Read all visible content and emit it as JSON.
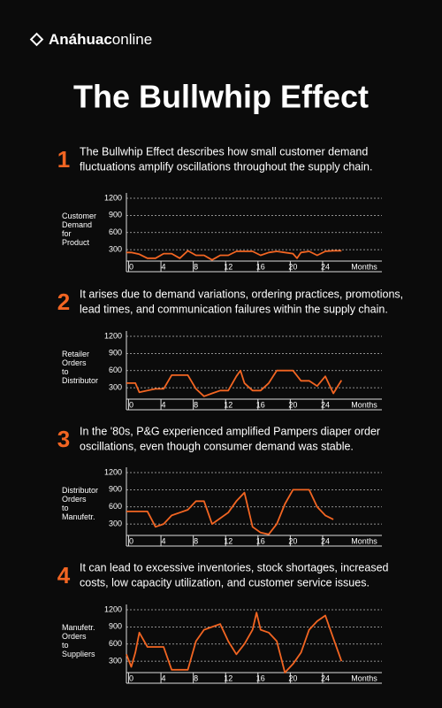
{
  "brand": {
    "bold": "Anáhuac",
    "light": "online"
  },
  "title": "The Bullwhip Effect",
  "sections": [
    {
      "number": "1",
      "lines": [
        "The Bullwhip Effect describes how small customer demand",
        "fluctuations amplify oscillations throughout the supply chain."
      ]
    },
    {
      "number": "2",
      "lines": [
        "It arises due to demand variations, ordering practices, promotions,",
        "lead times, and communication failures within the supply chain."
      ]
    },
    {
      "number": "3",
      "lines": [
        "In the '80s, P&G experienced amplified Pampers diaper order",
        "oscillations, even though consumer demand was stable."
      ]
    },
    {
      "number": "4",
      "lines": [
        "It can lead to excessive inventories, stock shortages, increased",
        "costs, low capacity utilization, and customer service issues."
      ]
    }
  ],
  "chart_data": [
    {
      "type": "line",
      "ylabel": [
        "Customer",
        "Demand",
        "for",
        "Product"
      ],
      "xlabel": "Months",
      "color": "#f26522",
      "x": [
        -0.6,
        0,
        1,
        2,
        3,
        4,
        5,
        6,
        7,
        8,
        9,
        10,
        11,
        12,
        13,
        14,
        15,
        16,
        17,
        18,
        19,
        20,
        20.5,
        21,
        22,
        23,
        24,
        25,
        26
      ],
      "values": [
        250,
        250,
        220,
        150,
        150,
        230,
        230,
        150,
        280,
        200,
        200,
        120,
        200,
        200,
        270,
        270,
        270,
        200,
        250,
        270,
        250,
        230,
        150,
        250,
        270,
        200,
        270,
        280,
        280
      ],
      "xlim": [
        -0.6,
        31
      ],
      "ylim": [
        100,
        1200
      ],
      "xticks": [
        0,
        4,
        8,
        12,
        16,
        20,
        24
      ],
      "yticks": [
        300,
        600,
        900,
        1200
      ],
      "grid": true
    },
    {
      "type": "line",
      "ylabel": [
        "Retailer",
        "Orders",
        "to",
        "Distributor"
      ],
      "xlabel": "Months",
      "color": "#f26522",
      "x": [
        -0.6,
        0.5,
        1,
        2,
        3,
        4,
        5,
        6,
        7,
        8,
        9,
        10,
        11,
        12,
        13,
        13.5,
        14,
        15,
        16,
        17,
        18,
        19,
        20,
        21,
        22,
        23,
        24,
        25,
        26
      ],
      "values": [
        380,
        380,
        220,
        250,
        280,
        280,
        520,
        520,
        520,
        280,
        150,
        200,
        250,
        250,
        500,
        600,
        380,
        250,
        250,
        380,
        600,
        600,
        600,
        420,
        420,
        330,
        500,
        200,
        430
      ],
      "xlim": [
        -0.6,
        31
      ],
      "ylim": [
        100,
        1200
      ],
      "xticks": [
        0,
        4,
        8,
        12,
        16,
        20,
        24
      ],
      "yticks": [
        300,
        600,
        900,
        1200
      ],
      "grid": true
    },
    {
      "type": "line",
      "ylabel": [
        "Distributor",
        "Orders",
        "to",
        "Manufetr."
      ],
      "xlabel": "Months",
      "color": "#f26522",
      "x": [
        -0.6,
        0,
        1,
        2,
        3,
        4,
        5,
        6,
        7,
        8,
        9,
        10,
        11,
        12,
        13,
        14,
        15,
        16,
        17,
        18,
        19,
        20,
        21,
        22,
        23,
        24,
        25
      ],
      "values": [
        520,
        520,
        520,
        520,
        250,
        300,
        450,
        500,
        550,
        700,
        700,
        300,
        400,
        500,
        700,
        850,
        250,
        150,
        120,
        300,
        650,
        900,
        900,
        900,
        600,
        450,
        380
      ],
      "xlim": [
        -0.6,
        31
      ],
      "ylim": [
        100,
        1200
      ],
      "xticks": [
        0,
        4,
        8,
        12,
        16,
        20,
        24
      ],
      "yticks": [
        300,
        600,
        900,
        1200
      ],
      "grid": true
    },
    {
      "type": "line",
      "ylabel": [
        "Manufetr.",
        "Orders",
        "to",
        "Suppliers"
      ],
      "xlabel": "Months",
      "color": "#f26522",
      "x": [
        -0.6,
        0,
        0.5,
        1,
        2,
        3,
        4,
        5,
        6,
        7,
        8,
        9,
        10,
        11,
        12,
        13,
        14,
        15,
        15.5,
        16,
        17,
        18,
        19,
        20,
        21,
        22,
        23,
        24,
        25,
        26
      ],
      "values": [
        420,
        200,
        450,
        800,
        550,
        550,
        550,
        150,
        150,
        150,
        650,
        850,
        900,
        950,
        650,
        420,
        600,
        850,
        1150,
        850,
        800,
        650,
        100,
        250,
        450,
        850,
        1000,
        1100,
        700,
        300
      ],
      "xlim": [
        -0.6,
        31
      ],
      "ylim": [
        100,
        1200
      ],
      "xticks": [
        0,
        4,
        8,
        12,
        16,
        20,
        24
      ],
      "yticks": [
        300,
        600,
        900,
        1200
      ],
      "grid": true
    }
  ]
}
